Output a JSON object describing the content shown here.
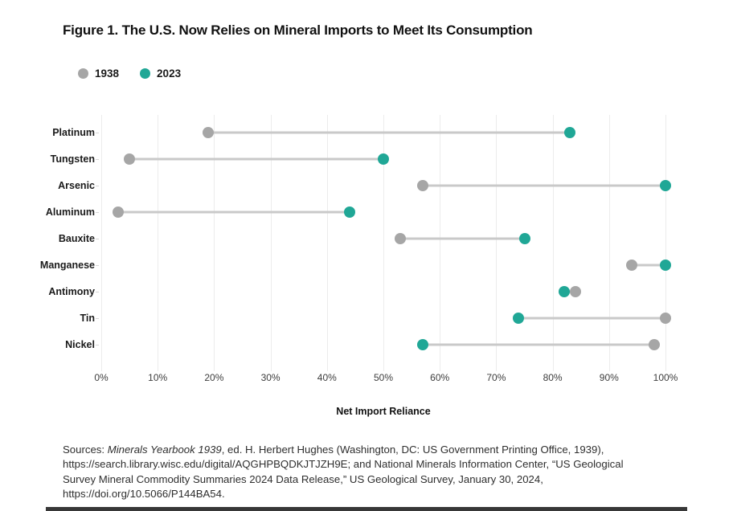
{
  "figure": {
    "title": "Figure 1. The U.S. Now Relies on Mineral Imports to Meet Its Consumption"
  },
  "chart_data": {
    "type": "scatter",
    "variant": "dumbbell",
    "title": "Figure 1. The U.S. Now Relies on Mineral Imports to Meet Its Consumption",
    "xlabel": "Net Import Reliance",
    "ylabel": "",
    "xlim": [
      0,
      100
    ],
    "grid": true,
    "legend_position": "top-left",
    "categories": [
      "Platinum",
      "Tungsten",
      "Arsenic",
      "Aluminum",
      "Bauxite",
      "Manganese",
      "Antimony",
      "Tin",
      "Nickel"
    ],
    "series": [
      {
        "name": "1938",
        "color": "#a6a6a6",
        "values": [
          19,
          5,
          57,
          3,
          53,
          94,
          84,
          100,
          98
        ]
      },
      {
        "name": "2023",
        "color": "#20a796",
        "values": [
          83,
          50,
          100,
          44,
          75,
          100,
          82,
          74,
          57
        ]
      }
    ],
    "x_tick_labels": [
      "0%",
      "10%",
      "20%",
      "30%",
      "40%",
      "50%",
      "60%",
      "70%",
      "80%",
      "90%",
      "100%"
    ],
    "connector_color": "#c9c9c9",
    "gridline_color": "#ececec"
  },
  "source_note": {
    "prefix": "Sources: ",
    "work_italic": "Minerals Yearbook 1939",
    "line1_rest": ", ed. H. Herbert Hughes (Washington, DC: US Government Printing Office, 1939),",
    "line2": "https://search.library.wisc.edu/digital/AQGHPBQDKJTJZH9E; and National Minerals Information Center, “US Geological",
    "line3": "Survey Mineral Commodity Summaries 2024 Data Release,” US Geological Survey, January 30, 2024,",
    "line4": "https://doi.org/10.5066/P144BA54."
  }
}
